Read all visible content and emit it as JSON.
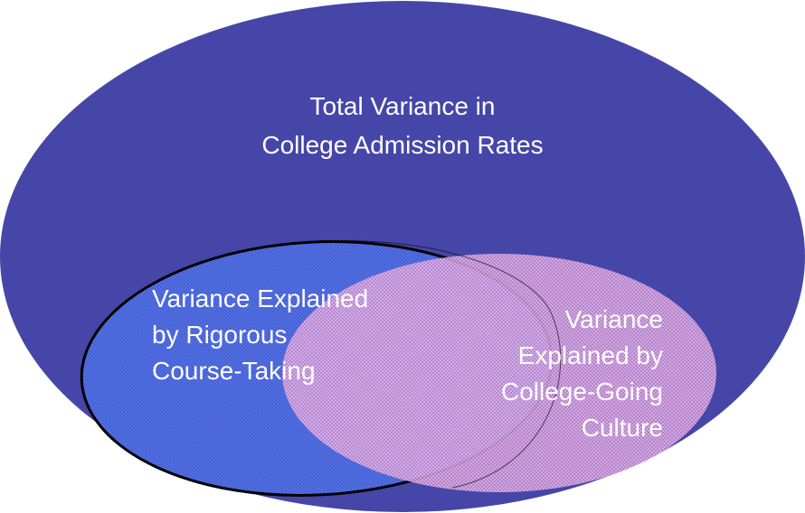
{
  "title": {
    "lines": [
      "Total Variance in",
      "College Admission Rates"
    ]
  },
  "sets": [
    {
      "label_lines": [
        "Variance Explained",
        "by Rigorous",
        "Course-Taking"
      ]
    },
    {
      "label_lines": [
        "Variance",
        "Explained by",
        "College-Going",
        "Culture"
      ]
    }
  ]
}
